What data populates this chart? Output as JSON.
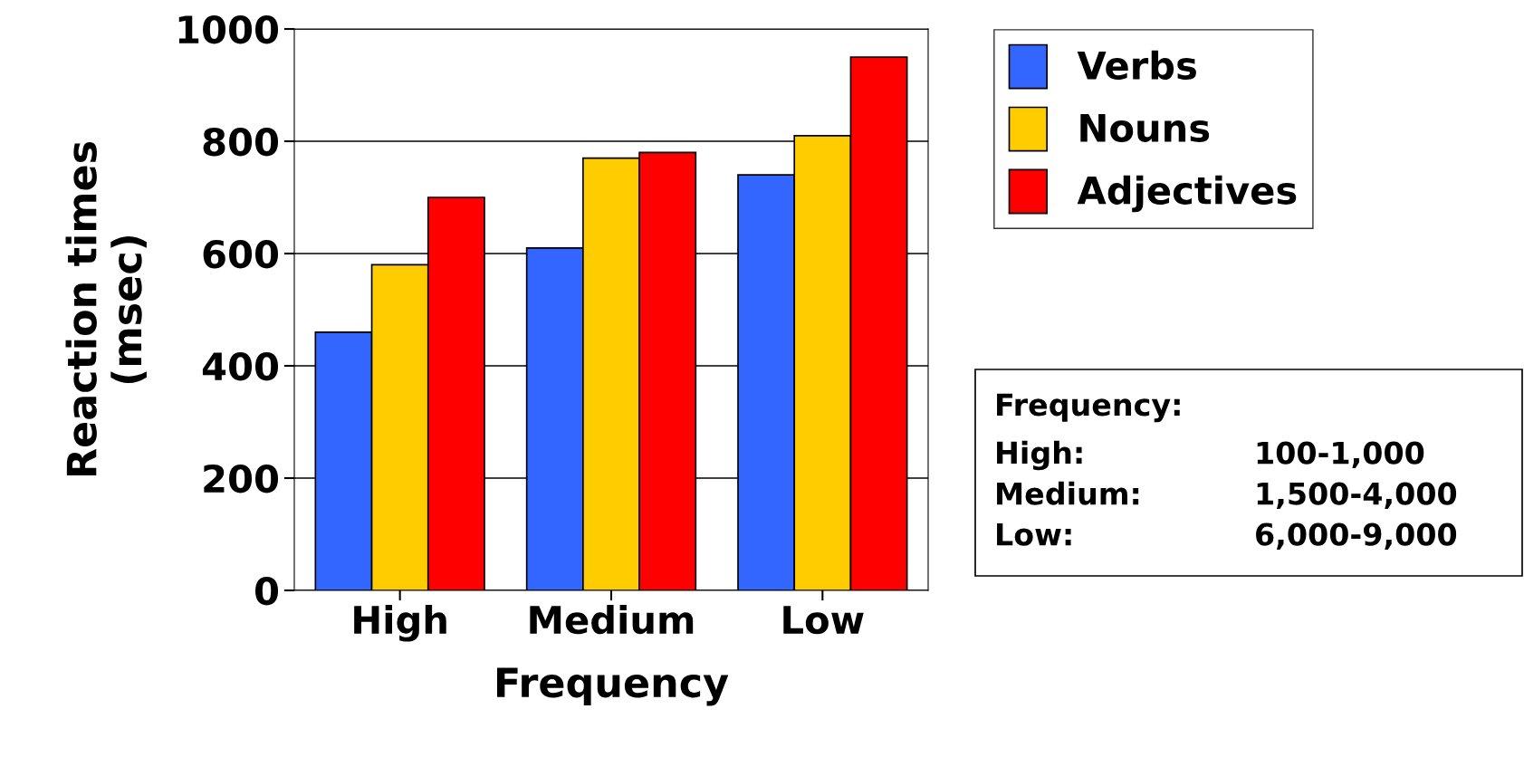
{
  "chart_data": {
    "type": "bar",
    "xlabel": "Frequency",
    "ylabel": "Reaction times\n(msec)",
    "categories": [
      "High",
      "Medium",
      "Low"
    ],
    "series": [
      {
        "name": "Verbs",
        "color": "#3366ff",
        "values": [
          460,
          610,
          740
        ]
      },
      {
        "name": "Nouns",
        "color": "#ffcc00",
        "values": [
          580,
          770,
          810
        ]
      },
      {
        "name": "Adjectives",
        "color": "#ff0000",
        "values": [
          700,
          780,
          950
        ]
      }
    ],
    "ylim": [
      0,
      1000
    ],
    "yticks": [
      0,
      200,
      400,
      600,
      800,
      1000
    ],
    "grid": "y",
    "legend": "top right",
    "annotations": [
      "Frequency:",
      "High:",
      "100-1,000",
      "Medium:",
      "1,500-4,000",
      "Low:",
      "6,000-9,000"
    ]
  }
}
